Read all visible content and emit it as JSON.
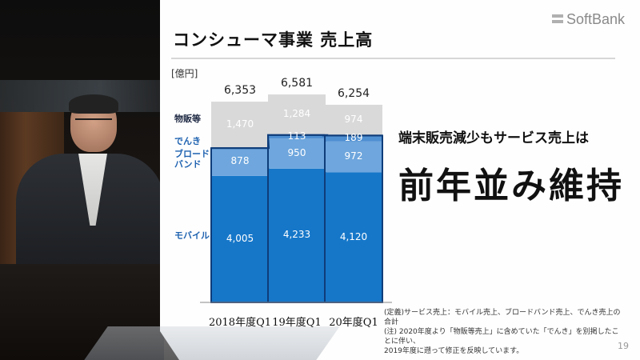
{
  "slide": {
    "title": "コンシューマ事業 売上高",
    "unit": "[億円]",
    "logo": "SoftBank",
    "message_line1": "端末販売減少もサービス売上は",
    "message_line2": "前年並み維持",
    "notes": [
      "(定義)サービス売上：モバイル売上、ブロードバンド売上、でんき売上の合計",
      "(注) 2020年度より「物販等売上」に含めていた「でんき」を別掲したことに伴い、",
      "2019年度に遡って修正を反映しています。"
    ],
    "page_number": "19"
  },
  "segment_labels": {
    "merch": "物販等",
    "denki": "でんき",
    "broadband": "ブロード\nバンド",
    "mobile": "モバイル"
  },
  "colors": {
    "mobile": "#1677c9",
    "broadband": "#6ea6dd",
    "denki": "#4e8fd1",
    "merch": "#d9d9d9",
    "outline": "#0f3d7a"
  },
  "chart_data": {
    "type": "bar",
    "stacked": true,
    "categories": [
      "2018年度Q1",
      "19年度Q1",
      "20年度Q1"
    ],
    "series": [
      {
        "name": "モバイル",
        "values": [
          4005,
          4233,
          4120
        ]
      },
      {
        "name": "ブロードバンド",
        "values": [
          878,
          950,
          972
        ]
      },
      {
        "name": "でんき",
        "values": [
          null,
          113,
          189
        ]
      },
      {
        "name": "物販等",
        "values": [
          1470,
          1284,
          974
        ]
      }
    ],
    "totals": [
      6353,
      6581,
      6254
    ],
    "value_labels": {
      "mobile": [
        "4,005",
        "4,233",
        "4,120"
      ],
      "broadband": [
        "878",
        "950",
        "972"
      ],
      "denki": [
        "",
        "113",
        "189"
      ],
      "merch": [
        "1,470",
        "1,284",
        "974"
      ],
      "totals": [
        "6,353",
        "6,581",
        "6,254"
      ]
    },
    "ylabel": "[億円]"
  }
}
